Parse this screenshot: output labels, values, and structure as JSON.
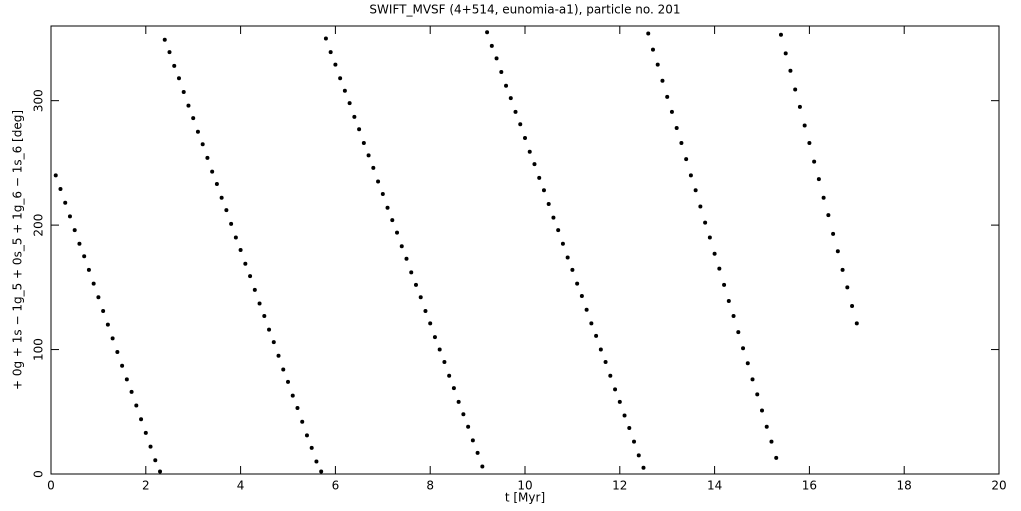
{
  "chart_data": {
    "type": "scatter",
    "title": "SWIFT_MVSF (4+514, eunomia-a1), particle no. 201",
    "x_label": "t [Myr]",
    "y_label": "+ 0g + 1s − 1g_5 + 0s_5 + 1g_6 − 1s_6 [deg]",
    "color": "#000000",
    "xlim": [
      0,
      20
    ],
    "xticks": [
      0,
      2,
      4,
      6,
      8,
      10,
      12,
      14,
      16,
      18,
      20
    ],
    "ylim": [
      0,
      360
    ],
    "yticks": [
      0,
      100,
      200,
      300
    ],
    "x": [
      0.1,
      0.2,
      0.3,
      0.4,
      0.5,
      0.6,
      0.7,
      0.8,
      0.9,
      1.0,
      1.1,
      1.2,
      1.3,
      1.4,
      1.5,
      1.6,
      1.7,
      1.8,
      1.9,
      2.0,
      2.1,
      2.2,
      2.3,
      2.4,
      2.5,
      2.6,
      2.7,
      2.8,
      2.9,
      3.0,
      3.1,
      3.2,
      3.3,
      3.4,
      3.5,
      3.6,
      3.7,
      3.8,
      3.9,
      4.0,
      4.1,
      4.2,
      4.3,
      4.4,
      4.5,
      4.6,
      4.7,
      4.8,
      4.9,
      5.0,
      5.1,
      5.2,
      5.3,
      5.4,
      5.5,
      5.6,
      5.7,
      5.8,
      5.9,
      6.0,
      6.1,
      6.2,
      6.3,
      6.4,
      6.5,
      6.6,
      6.7,
      6.8,
      6.9,
      7.0,
      7.1,
      7.2,
      7.3,
      7.4,
      7.5,
      7.6,
      7.7,
      7.8,
      7.9,
      8.0,
      8.1,
      8.2,
      8.3,
      8.4,
      8.5,
      8.6,
      8.7,
      8.8,
      8.9,
      9.0,
      9.1,
      9.2,
      9.3,
      9.4,
      9.5,
      9.6,
      9.7,
      9.8,
      9.9,
      10.0,
      10.1,
      10.2,
      10.3,
      10.4,
      10.5,
      10.6,
      10.7,
      10.8,
      10.9,
      11.0,
      11.1,
      11.2,
      11.3,
      11.4,
      11.5,
      11.6,
      11.7,
      11.8,
      11.9,
      12.0,
      12.1,
      12.2,
      12.3,
      12.4,
      12.5,
      12.6,
      12.7,
      12.8,
      12.9,
      13.0,
      13.1,
      13.2,
      13.3,
      13.4,
      13.5,
      13.6,
      13.7,
      13.8,
      13.9,
      14.0,
      14.1,
      14.2,
      14.3,
      14.4,
      14.5,
      14.6,
      14.7,
      14.8,
      14.9,
      15.0,
      15.1,
      15.2,
      15.3,
      15.4,
      15.5,
      15.6,
      15.7,
      15.8,
      15.9,
      16.0,
      16.1,
      16.2,
      16.3,
      16.4,
      16.5,
      16.6,
      16.7,
      16.8,
      16.9,
      17.0
    ],
    "values": [
      240,
      229,
      218,
      207,
      196,
      185,
      175,
      164,
      153,
      142,
      131,
      120,
      109,
      98,
      87,
      76,
      66,
      55,
      44,
      33,
      22,
      11,
      2,
      349,
      339,
      328,
      318,
      307,
      296,
      286,
      275,
      265,
      254,
      243,
      233,
      222,
      212,
      201,
      190,
      180,
      169,
      159,
      148,
      137,
      127,
      116,
      106,
      95,
      84,
      74,
      63,
      53,
      42,
      31,
      21,
      10,
      2,
      350,
      339,
      329,
      318,
      308,
      298,
      287,
      277,
      266,
      256,
      246,
      235,
      225,
      214,
      204,
      194,
      183,
      173,
      162,
      152,
      142,
      131,
      121,
      110,
      100,
      90,
      79,
      69,
      58,
      48,
      38,
      27,
      17,
      6,
      355,
      344,
      334,
      323,
      312,
      302,
      291,
      281,
      270,
      259,
      249,
      238,
      228,
      217,
      206,
      196,
      185,
      174,
      164,
      153,
      143,
      132,
      121,
      111,
      100,
      90,
      79,
      68,
      58,
      47,
      37,
      26,
      15,
      5,
      354,
      341,
      329,
      316,
      303,
      291,
      278,
      266,
      253,
      240,
      228,
      215,
      202,
      190,
      177,
      165,
      152,
      139,
      127,
      114,
      101,
      89,
      76,
      64,
      51,
      38,
      26,
      13,
      353,
      338,
      324,
      309,
      295,
      280,
      266,
      251,
      237,
      222,
      208,
      193,
      179,
      164,
      150,
      135,
      121
    ]
  }
}
